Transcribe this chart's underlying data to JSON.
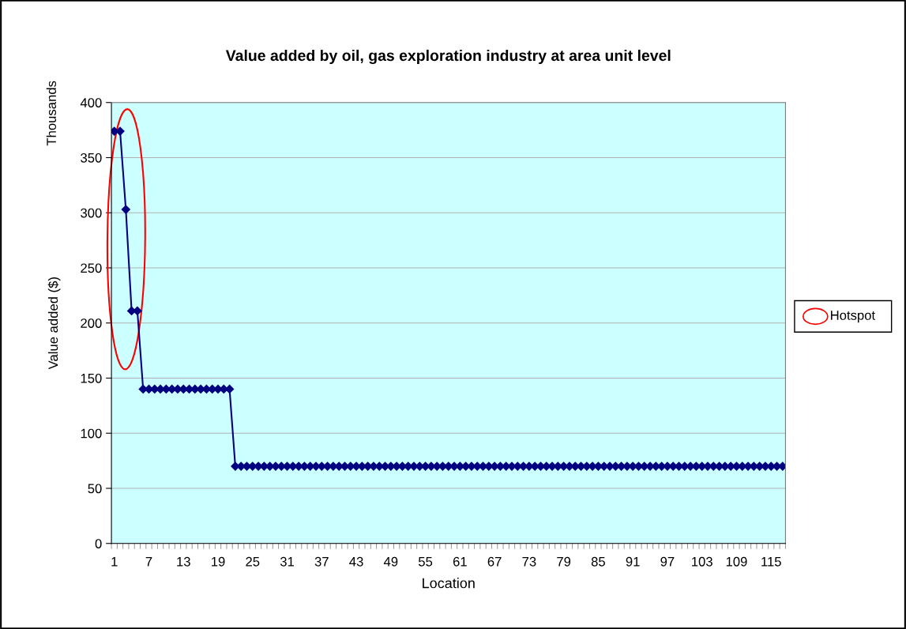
{
  "chart_data": {
    "type": "line",
    "title": "Value added by oil, gas exploration industry at area unit level",
    "xlabel": "Location",
    "ylabel": "Value added ($)",
    "annotations": [
      "Thousands",
      "Hotspot"
    ],
    "categories": [
      "1",
      null,
      null,
      null,
      null,
      null,
      "7",
      null,
      null,
      null,
      null,
      null,
      "13",
      null,
      null,
      null,
      null,
      null,
      "19",
      null,
      null,
      null,
      null,
      null,
      "25",
      null,
      null,
      null,
      null,
      null,
      "31",
      null,
      null,
      null,
      null,
      null,
      "37",
      null,
      null,
      null,
      null,
      null,
      "43",
      null,
      null,
      null,
      null,
      null,
      "49",
      null,
      null,
      null,
      null,
      null,
      "55",
      null,
      null,
      null,
      null,
      null,
      "61",
      null,
      null,
      null,
      null,
      null,
      "67",
      null,
      null,
      null,
      null,
      null,
      "73",
      null,
      null,
      null,
      null,
      null,
      "79",
      null,
      null,
      null,
      null,
      null,
      "85",
      null,
      null,
      null,
      null,
      null,
      "91",
      null,
      null,
      null,
      null,
      null,
      "97",
      null,
      null,
      null,
      null,
      null,
      "103",
      null,
      null,
      null,
      null,
      null,
      "109",
      null,
      null,
      null,
      null,
      null,
      "115",
      null,
      null
    ],
    "series": [
      {
        "color": "#000080",
        "values": [
          374,
          374,
          303,
          211,
          211,
          140,
          140,
          140,
          140,
          140,
          140,
          140,
          140,
          140,
          140,
          140,
          140,
          140,
          140,
          140,
          140,
          70,
          70,
          70,
          70,
          70,
          70,
          70,
          70,
          70,
          70,
          70,
          70,
          70,
          70,
          70,
          70,
          70,
          70,
          70,
          70,
          70,
          70,
          70,
          70,
          70,
          70,
          70,
          70,
          70,
          70,
          70,
          70,
          70,
          70,
          70,
          70,
          70,
          70,
          70,
          70,
          70,
          70,
          70,
          70,
          70,
          70,
          70,
          70,
          70,
          70,
          70,
          70,
          70,
          70,
          70,
          70,
          70,
          70,
          70,
          70,
          70,
          70,
          70,
          70,
          70,
          70,
          70,
          70,
          70,
          70,
          70,
          70,
          70,
          70,
          70,
          70,
          70,
          70,
          70,
          70,
          70,
          70,
          70,
          70,
          70,
          70,
          70,
          70,
          70,
          70,
          70,
          70,
          70,
          70,
          70,
          70
        ]
      }
    ],
    "ylim": [
      0,
      400
    ],
    "yticks": [
      0,
      50,
      100,
      150,
      200,
      250,
      300,
      350,
      400
    ],
    "grid": "y",
    "marker": "diamond",
    "line_style": "solid"
  }
}
